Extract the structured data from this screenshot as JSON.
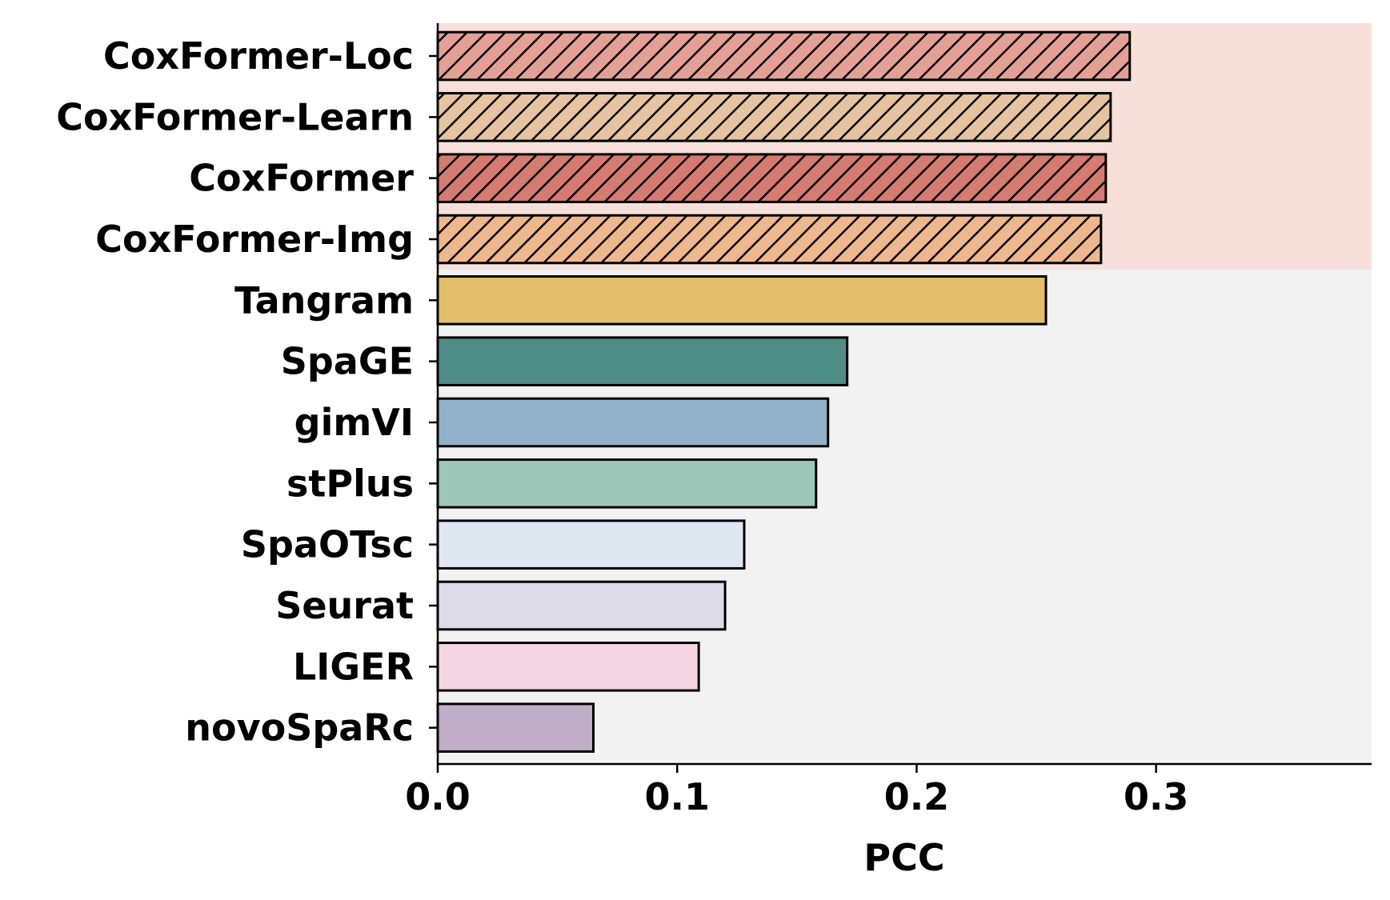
{
  "chart_data": {
    "type": "bar",
    "orientation": "horizontal",
    "xlabel": "PCC",
    "ylabel": "",
    "xlim": [
      0,
      0.39
    ],
    "xticks": [
      0.0,
      0.1,
      0.2,
      0.3
    ],
    "xtick_labels": [
      "0.0",
      "0.1",
      "0.2",
      "0.3"
    ],
    "grid": false,
    "categories": [
      "CoxFormer-Loc",
      "CoxFormer-Learn",
      "CoxFormer",
      "CoxFormer-Img",
      "Tangram",
      "SpaGE",
      "gimVI",
      "stPlus",
      "SpaOTsc",
      "Seurat",
      "LIGER",
      "novoSpaRc"
    ],
    "values": [
      0.289,
      0.281,
      0.279,
      0.277,
      0.254,
      0.171,
      0.163,
      0.158,
      0.128,
      0.12,
      0.109,
      0.065
    ],
    "colors": [
      "#e5a096",
      "#e6c4a1",
      "#d67b70",
      "#efb78e",
      "#e3bf6b",
      "#4f8e86",
      "#93b2c9",
      "#9dc7b8",
      "#dde8f1",
      "#dedbe8",
      "#f4d6e2",
      "#c0aec6"
    ],
    "hatched": [
      true,
      true,
      true,
      true,
      false,
      false,
      false,
      false,
      false,
      false,
      false,
      false
    ],
    "highlight_groups": [
      {
        "from": "CoxFormer-Loc",
        "to": "CoxFormer-Img",
        "color": "#f7e0da"
      },
      {
        "from": "Tangram",
        "to": "novoSpaRc",
        "color": "#f1f2f1"
      }
    ]
  }
}
